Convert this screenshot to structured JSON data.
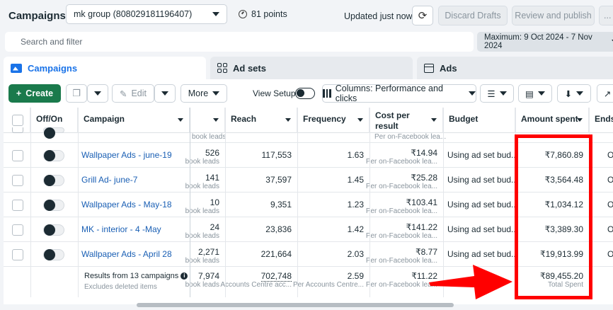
{
  "header": {
    "title": "Campaigns",
    "account": "mk group (808029181196407)",
    "points": "81 points",
    "updated": "Updated just now",
    "discard": "Discard Drafts",
    "review": "Review and publish",
    "more": "..."
  },
  "search": {
    "placeholder": "Search and filter"
  },
  "date_range": "Maximum: 9 Oct 2024 - 7 Nov 2024",
  "tabs": [
    {
      "label": "Campaigns",
      "icon": "folder-icon"
    },
    {
      "label": "Ad sets",
      "icon": "grid-icon"
    },
    {
      "label": "Ads",
      "icon": "ad-icon"
    }
  ],
  "toolbar": {
    "create": "Create",
    "edit": "Edit",
    "more": "More",
    "view_setup": "View Setup",
    "columns": "Columns: Performance and clicks"
  },
  "table": {
    "columns": {
      "offon": "Off/On",
      "campaign": "Campaign",
      "reach": "Reach",
      "frequency": "Frequency",
      "cpr_line1": "Cost per",
      "cpr_line2": "result",
      "budget": "Budget",
      "amount_spent": "Amount spent",
      "ends": "Ends"
    },
    "partial_top": {
      "results_sub": "book leads",
      "cpr_sub": "Per on-Facebook lea..."
    },
    "rows": [
      {
        "campaign": "Wallpaper Ads - june-19",
        "results": "526",
        "results_sub": "book leads",
        "reach": "117,553",
        "frequency": "1.63",
        "cpr": "₹14.94",
        "cpr_sub": "Per on-Facebook lea...",
        "budget": "Using ad set bud...",
        "spent": "₹7,860.89",
        "ends": "O"
      },
      {
        "campaign": "Grill Ad- june-7",
        "results": "141",
        "results_sub": "book leads",
        "reach": "37,597",
        "frequency": "1.45",
        "cpr": "₹25.28",
        "cpr_sub": "Per on-Facebook lea...",
        "budget": "Using ad set bud...",
        "spent": "₹3,564.48",
        "ends": "O"
      },
      {
        "campaign": "Wallpaper Ads - May-18",
        "results": "10",
        "results_sub": "book leads",
        "reach": "9,351",
        "frequency": "1.23",
        "cpr": "₹103.41",
        "cpr_sub": "Per on-Facebook lea...",
        "budget": "Using ad set bud...",
        "spent": "₹1,034.12",
        "ends": "O"
      },
      {
        "campaign": "MK - interior - 4 -May",
        "results": "24",
        "results_sub": "book leads",
        "reach": "23,836",
        "frequency": "1.42",
        "cpr": "₹141.22",
        "cpr_sub": "Per on-Facebook lea...",
        "budget": "Using ad set bud...",
        "spent": "₹3,389.30",
        "ends": "O"
      },
      {
        "campaign": "Wallpaper Ads - April 28",
        "results": "2,271",
        "results_sub": "book leads",
        "reach": "221,664",
        "frequency": "2.03",
        "cpr": "₹8.77",
        "cpr_sub": "Per on-Facebook lea...",
        "budget": "Using ad set bud...",
        "spent": "₹19,913.99",
        "ends": "O"
      }
    ],
    "summary": {
      "title": "Results from 13 campaigns",
      "subtitle": "Excludes deleted items",
      "results": "7,974",
      "results_sub": "book leads",
      "reach": "702,748",
      "reach_sub": "Accounts Centre acc...",
      "frequency": "2.59",
      "frequency_sub": "Per Accounts Centre...",
      "cpr": "₹11.22",
      "cpr_sub": "Per on-Facebook lea...",
      "spent": "₹89,455.20",
      "spent_sub": "Total Spent"
    }
  },
  "annotation": {
    "box_color": "#ff0000",
    "arrow_color": "#ff0000"
  }
}
